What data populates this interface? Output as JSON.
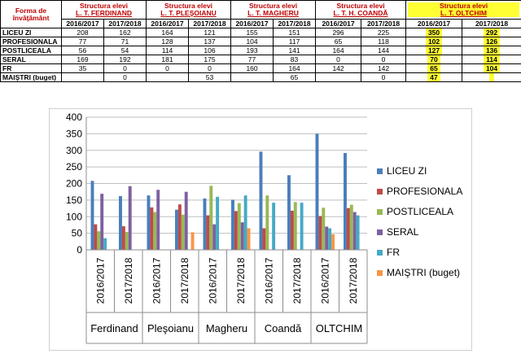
{
  "table": {
    "corner_label": "Forma de învăţământ",
    "schools": [
      {
        "line1": "Structura elevi",
        "line2": "L. T. FERDINAND",
        "highlight": false
      },
      {
        "line1": "Structura elevi",
        "line2": "L. T. PLEŞOIANU",
        "highlight": false
      },
      {
        "line1": "Structura elevi",
        "line2": "L. T. MAGHERU",
        "highlight": false
      },
      {
        "line1": "Structura elevi",
        "line2": "L. T. H. COANDĂ",
        "highlight": false
      },
      {
        "line1": "Structura elevi",
        "line2": "L. T. OLTCHIM",
        "highlight": true
      }
    ],
    "years": [
      "2016/2017",
      "2017/2018"
    ],
    "rows": [
      {
        "label": "LICEU ZI",
        "values": [
          "208",
          "162",
          "164",
          "121",
          "155",
          "151",
          "296",
          "225",
          "350",
          "292"
        ]
      },
      {
        "label": "PROFESIONALA",
        "values": [
          "77",
          "71",
          "128",
          "137",
          "104",
          "117",
          "65",
          "118",
          "102",
          "126"
        ]
      },
      {
        "label": "POSTLICEALA",
        "values": [
          "56",
          "54",
          "114",
          "106",
          "193",
          "141",
          "164",
          "144",
          "127",
          "136"
        ]
      },
      {
        "label": "SERAL",
        "values": [
          "169",
          "192",
          "181",
          "175",
          "77",
          "83",
          "0",
          "0",
          "70",
          "114"
        ]
      },
      {
        "label": "FR",
        "values": [
          "35",
          "0",
          "0",
          "0",
          "160",
          "164",
          "142",
          "142",
          "65",
          "104"
        ]
      },
      {
        "label": "MAIŞTRI (buget)",
        "values": [
          "",
          "0",
          "",
          "53",
          "",
          "65",
          "",
          "0",
          "47",
          ""
        ]
      }
    ]
  },
  "chart_data": {
    "type": "bar",
    "title": "",
    "xlabel": "",
    "ylabel": "",
    "ylim": [
      0,
      400
    ],
    "yticks": [
      0,
      50,
      100,
      150,
      200,
      250,
      300,
      350,
      400
    ],
    "gridlines": true,
    "legend_position": "right",
    "categories": [
      "2016/2017",
      "2017/2018",
      "2016/2017",
      "2017/2018",
      "2016/2017",
      "2017/2018",
      "2016/2017",
      "2017/2018",
      "2016/2017",
      "2017/2018"
    ],
    "groups": [
      "Ferdinand",
      "Pleşoianu",
      "Magheru",
      "Coandă",
      "OLTCHIM"
    ],
    "series": [
      {
        "name": "LICEU ZI",
        "color": "#4a7ebb",
        "values": [
          208,
          162,
          164,
          121,
          155,
          151,
          296,
          225,
          350,
          292
        ]
      },
      {
        "name": "PROFESIONALA",
        "color": "#be4b48",
        "values": [
          77,
          71,
          128,
          137,
          104,
          117,
          65,
          118,
          102,
          126
        ]
      },
      {
        "name": "POSTLICEALA",
        "color": "#98b954",
        "values": [
          56,
          54,
          114,
          106,
          193,
          141,
          164,
          144,
          127,
          136
        ]
      },
      {
        "name": "SERAL",
        "color": "#7d60a0",
        "values": [
          169,
          192,
          181,
          175,
          77,
          83,
          0,
          0,
          70,
          114
        ]
      },
      {
        "name": "FR",
        "color": "#46aac5",
        "values": [
          35,
          0,
          0,
          0,
          160,
          164,
          142,
          142,
          65,
          104
        ]
      },
      {
        "name": "MAIŞTRI (buget)",
        "color": "#f79646",
        "values": [
          0,
          0,
          0,
          53,
          0,
          65,
          0,
          0,
          47,
          0
        ]
      }
    ]
  }
}
